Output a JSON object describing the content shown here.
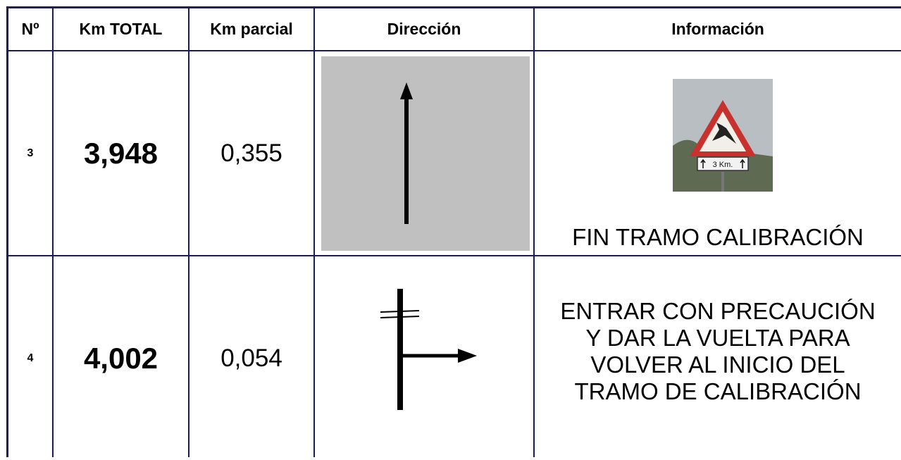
{
  "table": {
    "header": [
      "Nº",
      "Km TOTAL",
      "Km parcial",
      "Dirección",
      "Información"
    ],
    "rows": [
      {
        "n": "3",
        "km_total": "3,948",
        "km_parcial": "0,355",
        "sign_plate": "3 Km.",
        "info": [
          "FIN TRAMO CALIBRACIÓN"
        ]
      },
      {
        "n": "4",
        "km_total": "4,002",
        "km_parcial": "0,054",
        "info": [
          "ENTRAR CON PRECAUCIÓN",
          "Y DAR LA VUELTA PARA",
          "VOLVER AL INICIO DEL",
          "TRAMO DE CALIBRACIÓN"
        ]
      }
    ]
  }
}
